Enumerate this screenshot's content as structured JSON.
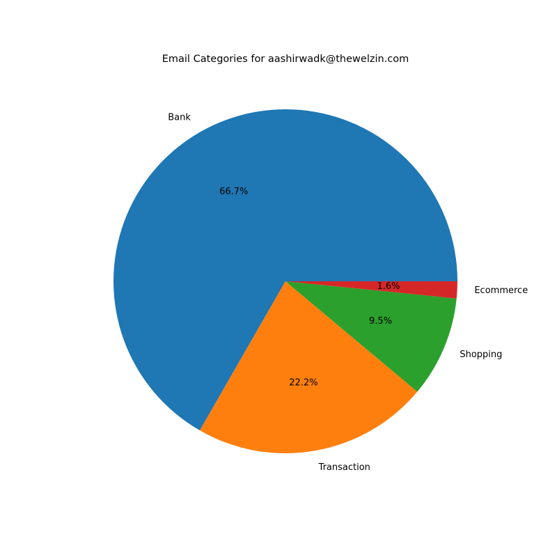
{
  "chart_data": {
    "type": "pie",
    "title": "Email Categories for aashirwadk@thewelzin.com",
    "categories": [
      "Bank",
      "Transaction",
      "Shopping",
      "Ecommerce"
    ],
    "values": [
      66.7,
      22.2,
      9.5,
      1.6
    ],
    "value_labels": [
      "66.7%",
      "22.2%",
      "9.5%",
      "1.6%"
    ],
    "colors": [
      "#1f77b4",
      "#ff7f0e",
      "#2ca02c",
      "#d62728"
    ],
    "start_angle_deg": 0,
    "direction": "counterclockwise",
    "legend": "none"
  }
}
